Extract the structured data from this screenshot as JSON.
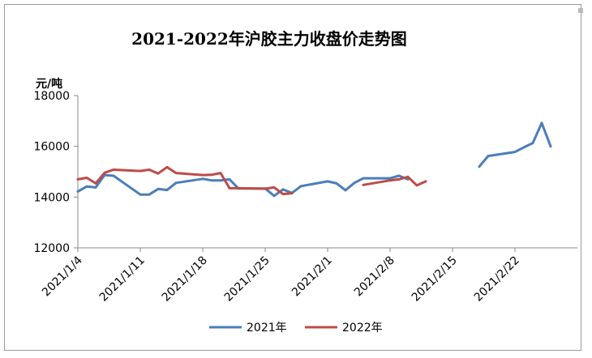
{
  "chart_data": {
    "type": "line",
    "title": "2021-2022年沪胶主力收盘价走势图",
    "unit_label": "元/吨",
    "ylim": [
      12000,
      18000
    ],
    "yticks": [
      "12000",
      "14000",
      "16000",
      "18000"
    ],
    "xticks": [
      "2021/1/4",
      "2021/1/11",
      "2021/1/18",
      "2021/1/25",
      "2021/2/1",
      "2021/2/8",
      "2021/2/15",
      "2021/2/22"
    ],
    "x_range": [
      0,
      56
    ],
    "grid": false,
    "legend_position": "bottom",
    "series": [
      {
        "name": "2021年",
        "color": "#4a7ebb",
        "points": [
          [
            0,
            14220
          ],
          [
            1,
            14420
          ],
          [
            2,
            14380
          ],
          [
            3,
            14870
          ],
          [
            4,
            14840
          ],
          [
            7,
            14100
          ],
          [
            8,
            14100
          ],
          [
            9,
            14320
          ],
          [
            10,
            14280
          ],
          [
            11,
            14560
          ],
          [
            14,
            14720
          ],
          [
            15,
            14660
          ],
          [
            16,
            14660
          ],
          [
            17,
            14700
          ],
          [
            18,
            14340
          ],
          [
            21,
            14340
          ],
          [
            22,
            14050
          ],
          [
            23,
            14300
          ],
          [
            24,
            14160
          ],
          [
            25,
            14430
          ],
          [
            28,
            14620
          ],
          [
            29,
            14540
          ],
          [
            30,
            14270
          ],
          [
            31,
            14560
          ],
          [
            32,
            14740
          ],
          [
            35,
            14740
          ],
          [
            36,
            14840
          ],
          [
            37,
            14700
          ],
          [
            45,
            15200
          ],
          [
            46,
            15620
          ],
          [
            49,
            15780
          ],
          [
            50,
            15960
          ],
          [
            51,
            16130
          ],
          [
            52,
            16920
          ],
          [
            53,
            16000
          ]
        ]
      },
      {
        "name": "2022年",
        "color": "#be4b48",
        "points": [
          [
            0,
            14700
          ],
          [
            1,
            14760
          ],
          [
            2,
            14540
          ],
          [
            3,
            14960
          ],
          [
            4,
            15080
          ],
          [
            7,
            15030
          ],
          [
            8,
            15080
          ],
          [
            9,
            14930
          ],
          [
            10,
            15180
          ],
          [
            11,
            14950
          ],
          [
            14,
            14870
          ],
          [
            15,
            14880
          ],
          [
            16,
            14950
          ],
          [
            17,
            14350
          ],
          [
            18,
            14350
          ],
          [
            21,
            14330
          ],
          [
            22,
            14380
          ],
          [
            23,
            14120
          ],
          [
            24,
            14150
          ],
          [
            32,
            14480
          ],
          [
            35,
            14660
          ],
          [
            36,
            14700
          ],
          [
            37,
            14800
          ],
          [
            38,
            14460
          ],
          [
            39,
            14620
          ]
        ]
      }
    ]
  }
}
